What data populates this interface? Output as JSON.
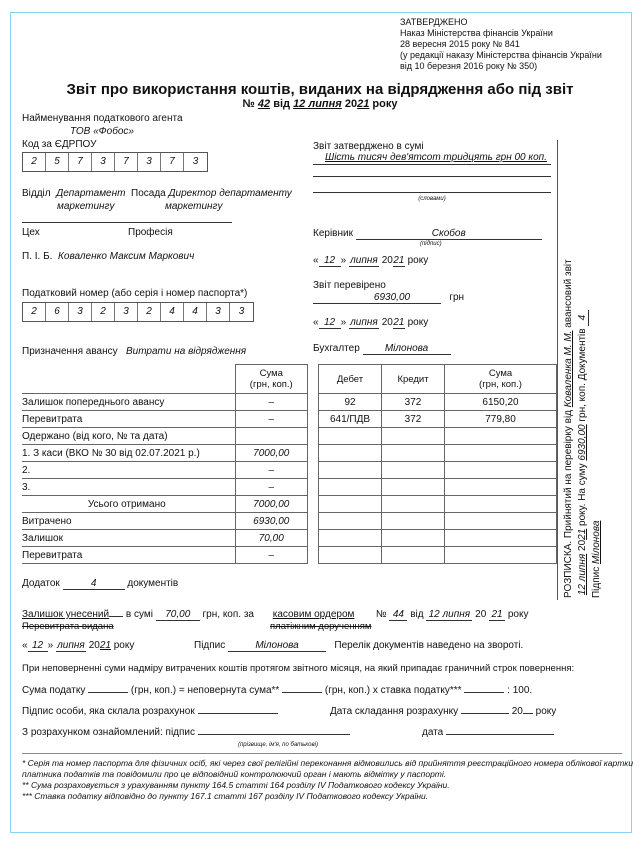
{
  "approval": {
    "l1": "ЗАТВЕРДЖЕНО",
    "l2": "Наказ Міністерства фінансів України",
    "l3": "28 вересня 2015 року № 841",
    "l4": "(у редакції наказу Міністерства фінансів України",
    "l5": "від 10 березня 2016 року № 350)"
  },
  "title": "Звіт про використання коштів, виданих на відрядження або під звіт",
  "subtitle": {
    "no_label": "№",
    "number": "42",
    "from": "від",
    "date": "12 липня",
    "year_prefix": "20",
    "year": "21",
    "year_suffix": "року"
  },
  "agent": {
    "label": "Найменування податкового агента",
    "value": "ТОВ «Фобос»",
    "edrpou_label": "Код за ЄДРПОУ",
    "edrpou": [
      "2",
      "5",
      "7",
      "3",
      "7",
      "3",
      "7",
      "3"
    ]
  },
  "dept": {
    "label": "Відділ",
    "value1": "Департамент",
    "value2": "маркетингу",
    "pos_label": "Посада",
    "pos1": "Директор департаменту",
    "pos2": "маркетингу"
  },
  "shop_label": "Цех",
  "profession_label": "Професія",
  "pib": {
    "label": "П. І. Б.",
    "value": "Коваленко Максим Маркович"
  },
  "taxno": {
    "label": "Податковий номер (або серія і номер паспорта*)",
    "digits": [
      "2",
      "6",
      "3",
      "2",
      "3",
      "2",
      "4",
      "4",
      "3",
      "3"
    ]
  },
  "purpose": {
    "label": "Призначення авансу",
    "value": "Витрати на відрядження"
  },
  "approved": {
    "label": "Звіт затверджено в сумі",
    "words": "Шість тисяч дев'ятсот тридцять грн 00 коп.",
    "caption": "(словами)"
  },
  "head": {
    "label": "Керівник",
    "value": "Скобов",
    "caption": "(підпис)",
    "day": "12",
    "month": "липня",
    "century": "20",
    "year": "21",
    "suffix": "року"
  },
  "checked": {
    "label": "Звіт перевірено",
    "amount": "6930,00",
    "currency": "грн",
    "day": "12",
    "month": "липня",
    "century": "20",
    "year": "21",
    "suffix": "року"
  },
  "accountant": {
    "label": "Бухгалтер",
    "value": "Мілонова"
  },
  "left_table": {
    "header": "Сума\n(грн, коп.)",
    "rows": [
      {
        "label": "Залишок попереднього авансу",
        "value": "–"
      },
      {
        "label": "Перевитрата",
        "value": "–"
      },
      {
        "label": "Одержано (від кого, № та дата)",
        "value": ""
      },
      {
        "label": "1. З каси (ВКО № 30 від 02.07.2021 р.)",
        "value": "7000,00"
      },
      {
        "label": "2.",
        "value": "–"
      },
      {
        "label": "3.",
        "value": "–"
      },
      {
        "label": "Усього отримано",
        "value": "7000,00"
      },
      {
        "label": "Витрачено",
        "value": "6930,00"
      },
      {
        "label": "Залишок",
        "value": "70,00"
      },
      {
        "label": "Перевитрата",
        "value": "–"
      }
    ]
  },
  "right_table": {
    "headers": [
      "Дебет",
      "Кредит",
      "Сума\n(грн, коп.)"
    ],
    "rows": [
      [
        "92",
        "372",
        "6150,20"
      ],
      [
        "641/ПДВ",
        "372",
        "779,80"
      ],
      [
        "",
        "",
        ""
      ],
      [
        "",
        "",
        ""
      ],
      [
        "",
        "",
        ""
      ],
      [
        "",
        "",
        ""
      ],
      [
        "",
        "",
        ""
      ],
      [
        "",
        "",
        ""
      ],
      [
        "",
        "",
        ""
      ],
      [
        "",
        "",
        ""
      ]
    ]
  },
  "attach": {
    "label": "Додаток",
    "value": "4",
    "suffix": "документів"
  },
  "remainder": {
    "l1": "Залишок унесений",
    "l1b": "Перевитрата видана",
    "in_sum": "в сумі",
    "sum": "70,00",
    "unit": "грн, коп. за",
    "by": "касовим ордером",
    "by2": "платіжним дорученням",
    "no": "№",
    "num": "44",
    "from": "від",
    "date": "12 липня",
    "century": "20",
    "year": "21",
    "suffix": "року"
  },
  "sign_row": {
    "day": "12",
    "month": "липня",
    "century": "20",
    "year": "21",
    "suffix": "року",
    "sign_label": "Підпис",
    "sign": "Мілонова",
    "note": "Перелік документів наведено на звороті."
  },
  "nonreturn": "При неповерненні суми надміру витрачених коштів протягом звітного місяця, на який припадає граничний строк повернення:",
  "tax": {
    "a": "Сума податку",
    "b": "(грн, коп.) = неповернута сума**",
    "c": "(грн, коп.) х ставка податку***",
    "d": ": 100."
  },
  "calc": {
    "who": "Підпис особи, яка склала розрахунок",
    "date": "Дата складання розрахунку",
    "century": "20",
    "suffix": "року"
  },
  "ack": {
    "label": "З розрахунком ознайомлений: підпис",
    "caption": "(прізвище, ім'я, по батькові)",
    "date": "дата"
  },
  "footnotes": [
    "* Серія та номер паспорта для фізичних осіб, які через свої релігійні переконання відмовились від прийняття реєстраційного номера облікової картки",
    "платника податків та повідомили про це відповідний контролюючий орган і мають відмітку у паспорті.",
    "** Сума розраховується з урахуванням пункту 164.5 статті 164 розділу IV Податкового кодексу України.",
    "*** Ставка податку відповідно до пункту 167.1 статті 167 розділу IV Податкового кодексу України."
  ],
  "receipt": {
    "a": "РОЗПИСКА. Прийнятий на перевірку від",
    "name": "Коваленка М. М.",
    "b": "авансовий звіт",
    "date": "12 липня",
    "c1": "20",
    "year": "21",
    "c2": "року. На суму",
    "sum": "6930,00",
    "c3": "грн, коп. Документів",
    "docs": "4",
    "sign_label": "Підпис",
    "sign": "Мілонова"
  }
}
